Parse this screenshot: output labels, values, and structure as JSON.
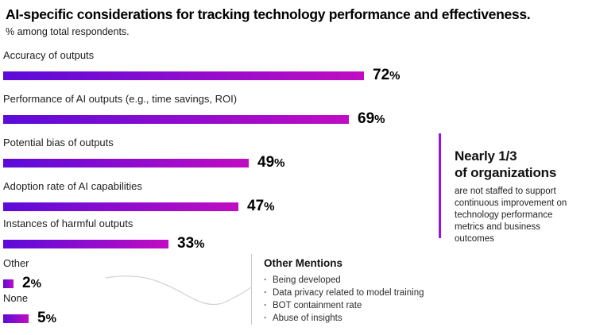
{
  "header": {
    "title": "AI-specific considerations for tracking technology performance and effectiveness.",
    "subtitle": "% among total respondents."
  },
  "chart_data": {
    "type": "bar",
    "orientation": "horizontal",
    "title": "AI-specific considerations for tracking technology performance and effectiveness.",
    "subtitle": "% among total respondents.",
    "unit": "%",
    "categories": [
      "Accuracy of outputs",
      "Performance of AI outputs (e.g., time savings, ROI)",
      "Potential bias of outputs",
      "Adoption rate of AI capabilities",
      "Instances of harmful outputs",
      "Other",
      "None"
    ],
    "values": [
      72,
      69,
      49,
      47,
      33,
      2,
      5
    ],
    "xlim": [
      0,
      100
    ],
    "grid": false,
    "data_labels": [
      "72%",
      "69%",
      "49%",
      "47%",
      "33%",
      "2%",
      "5%"
    ],
    "bar_gradient_start": "#5C0BD9",
    "bar_gradient_end": "#C00DC3"
  },
  "callout": {
    "heading_line1": "Nearly 1/3",
    "heading_line2": "of organizations",
    "body": "are not staffed to support continuous improvement on technology performance metrics and business outcomes",
    "accent_color": "#9C0FEF"
  },
  "other_mentions": {
    "heading": "Other Mentions",
    "items": [
      "Being developed",
      "Data privacy related to model training",
      "BOT containment rate",
      "Abuse of insights"
    ]
  },
  "colors": {
    "background": "#ffffff",
    "text": "#111111",
    "connector_gray": "#d2d2d2"
  }
}
